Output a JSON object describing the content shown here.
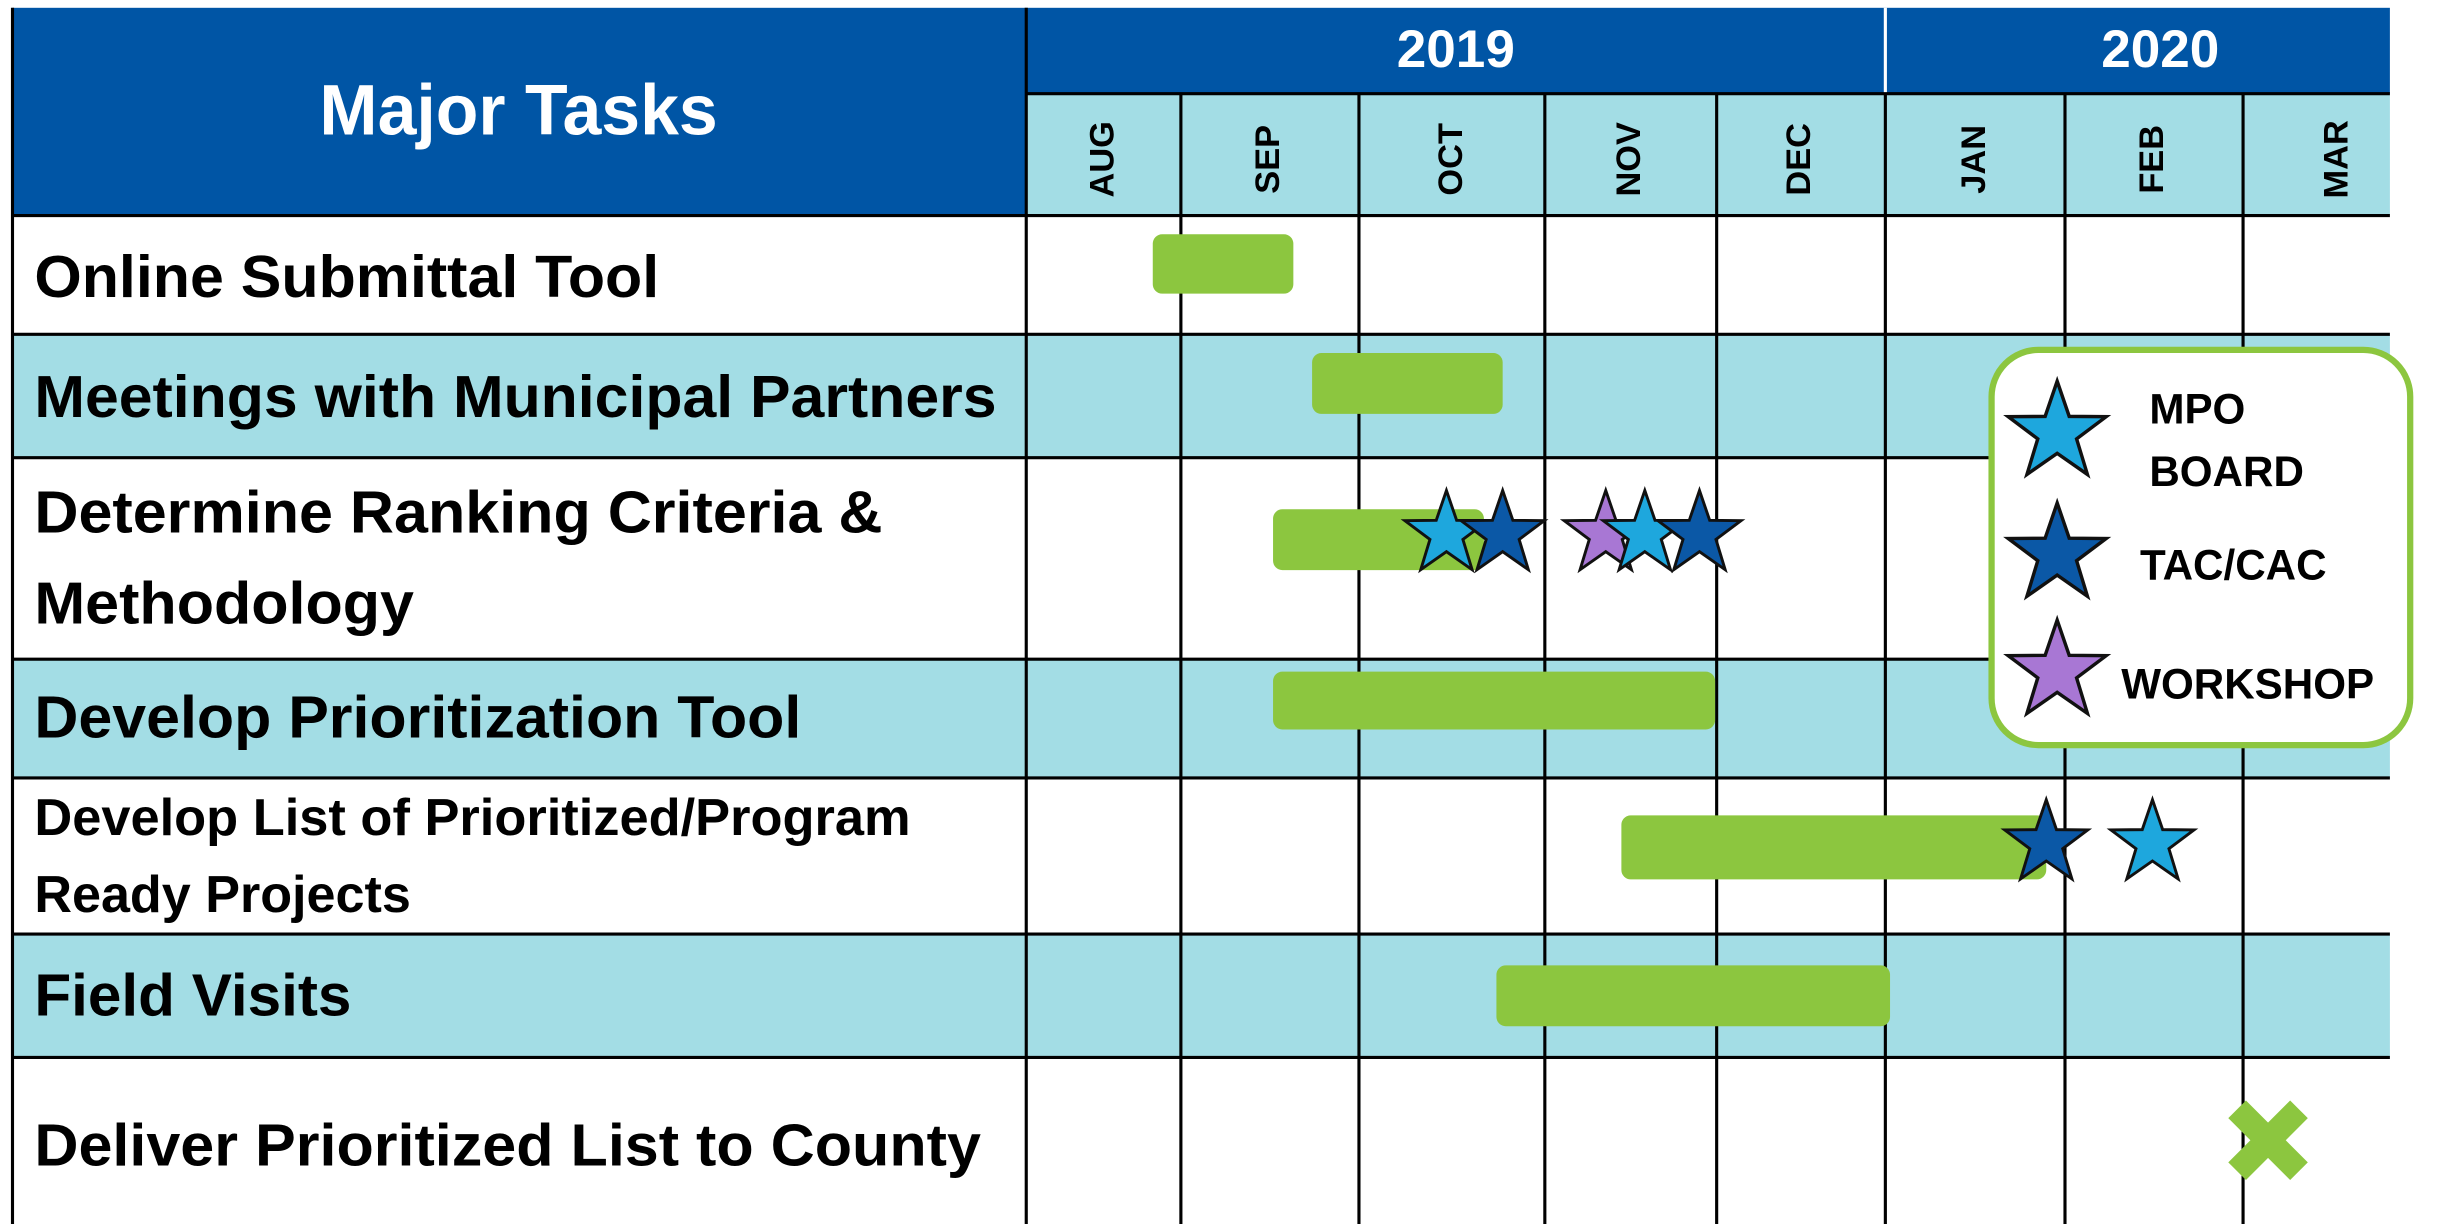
{
  "header": {
    "title": "Major Tasks",
    "years": [
      "2019",
      "2020"
    ],
    "months": [
      "AUG",
      "SEP",
      "OCT",
      "NOV",
      "DEC",
      "JAN",
      "FEB",
      "MAR"
    ]
  },
  "tasks": [
    {
      "lines": [
        "Online Submittal Tool"
      ]
    },
    {
      "lines": [
        "Meetings with Municipal Partners"
      ]
    },
    {
      "lines": [
        "Determine Ranking Criteria &",
        "Methodology"
      ]
    },
    {
      "lines": [
        "Develop Prioritization Tool"
      ]
    },
    {
      "lines": [
        "Develop List of Prioritized/Program",
        "Ready Projects"
      ]
    },
    {
      "lines": [
        "Field Visits"
      ]
    },
    {
      "lines": [
        "Deliver Prioritized List to County"
      ]
    }
  ],
  "legend": {
    "items": [
      {
        "lines": [
          "MPO",
          "BOARD"
        ]
      },
      {
        "lines": [
          "TAC/CAC"
        ]
      },
      {
        "lines": [
          "WORKSHOP"
        ]
      }
    ]
  }
}
